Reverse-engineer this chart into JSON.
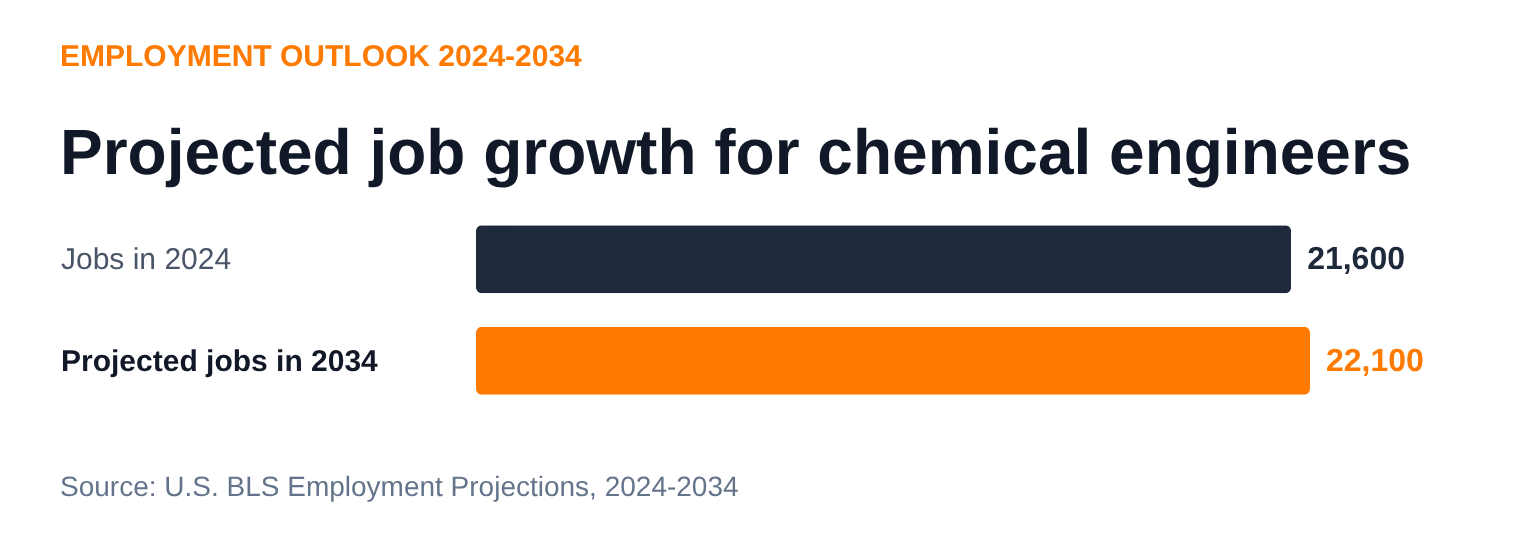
{
  "chart_data": {
    "type": "bar",
    "orientation": "horizontal",
    "subtitle": "EMPLOYMENT OUTLOOK 2024-2034",
    "title": "Projected job growth for chemical engineers",
    "categories": [
      "Jobs in 2024",
      "Projected jobs in 2034"
    ],
    "values": [
      21600,
      22100
    ],
    "colors": [
      "#1e293b",
      "#ff7a00"
    ],
    "value_labels": [
      "21,600",
      "22,100"
    ],
    "legend": false,
    "grid": false,
    "annotations": [
      "Source: U.S. BLS Employment Projections, 2024-2034"
    ]
  }
}
